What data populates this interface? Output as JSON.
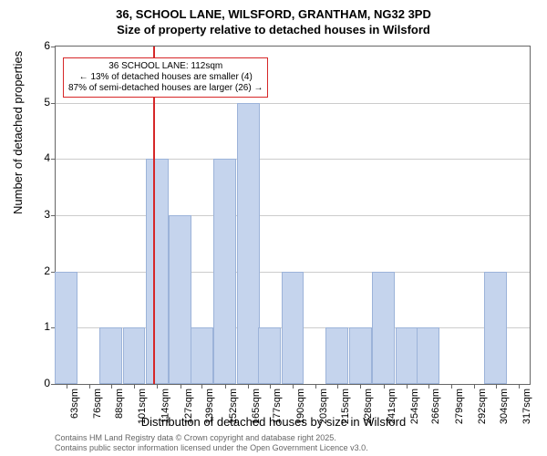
{
  "title_main": "36, SCHOOL LANE, WILSFORD, GRANTHAM, NG32 3PD",
  "title_sub": "Size of property relative to detached houses in Wilsford",
  "y_label": "Number of detached properties",
  "x_label": "Distribution of detached houses by size in Wilsford",
  "footer_line1": "Contains HM Land Registry data © Crown copyright and database right 2025.",
  "footer_line2": "Contains public sector information licensed under the Open Government Licence v3.0.",
  "annotation": {
    "line1": "36 SCHOOL LANE: 112sqm",
    "line2": "← 13% of detached houses are smaller (4)",
    "line3": "87% of semi-detached houses are larger (26) →"
  },
  "chart": {
    "type": "bar",
    "ylim": [
      0,
      6
    ],
    "ytick_step": 1,
    "xlim": [
      57,
      323
    ],
    "x_ticks": [
      63,
      76,
      88,
      101,
      114,
      127,
      139,
      152,
      165,
      177,
      190,
      203,
      215,
      228,
      241,
      254,
      266,
      279,
      292,
      304,
      317
    ],
    "x_tick_suffix": "sqm",
    "reference_x": 112,
    "reference_color": "#d62728",
    "bar_color": "#c5d4ed",
    "bar_border_color": "#9cb3d9",
    "grid_color": "#cccccc",
    "background_color": "#ffffff",
    "bars": [
      {
        "x": 63,
        "y": 2
      },
      {
        "x": 88,
        "y": 1
      },
      {
        "x": 101,
        "y": 1
      },
      {
        "x": 114,
        "y": 4
      },
      {
        "x": 127,
        "y": 3
      },
      {
        "x": 139,
        "y": 1
      },
      {
        "x": 152,
        "y": 4
      },
      {
        "x": 165,
        "y": 5
      },
      {
        "x": 177,
        "y": 1
      },
      {
        "x": 190,
        "y": 2
      },
      {
        "x": 215,
        "y": 1
      },
      {
        "x": 228,
        "y": 1
      },
      {
        "x": 241,
        "y": 2
      },
      {
        "x": 254,
        "y": 1
      },
      {
        "x": 266,
        "y": 1
      },
      {
        "x": 304,
        "y": 2
      }
    ],
    "bar_width_units": 12.7,
    "title_fontsize": 13,
    "label_fontsize": 13,
    "tick_fontsize": 11,
    "annotation_fontsize": 10
  }
}
